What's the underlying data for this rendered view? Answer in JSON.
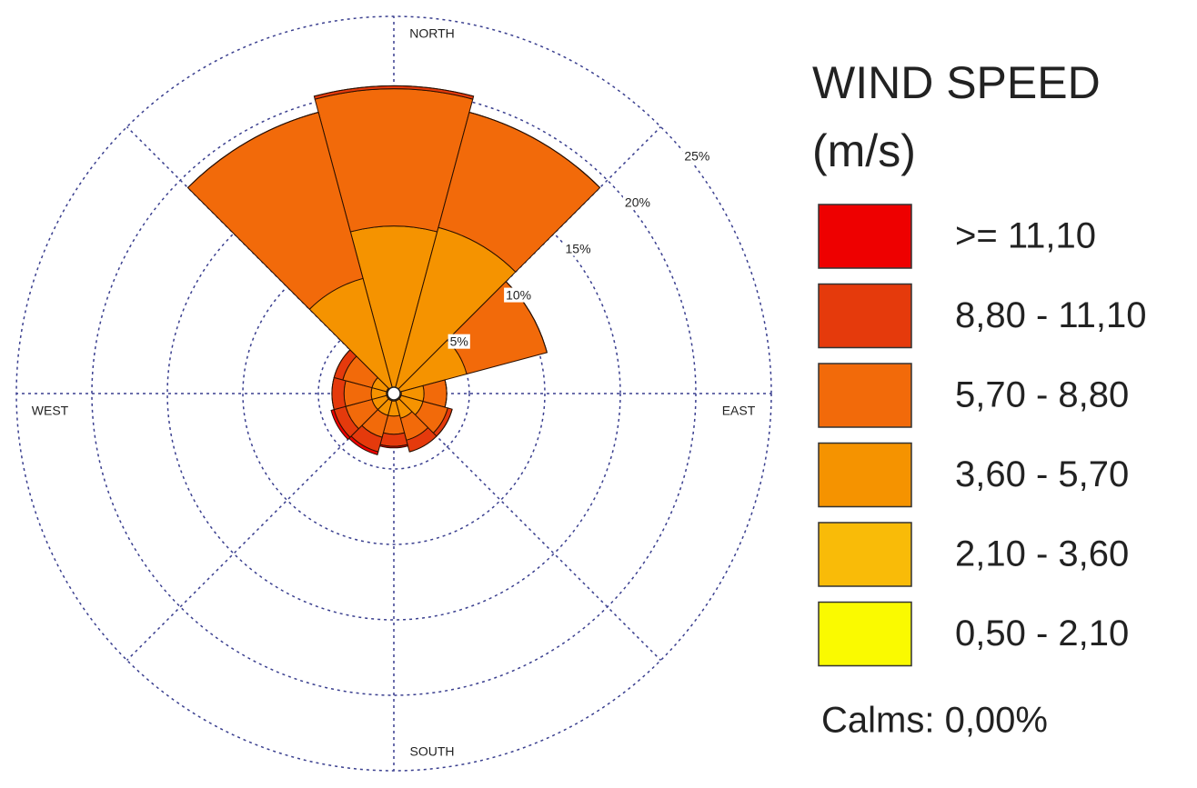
{
  "chart_data": {
    "type": "windrose",
    "legend_title": "WIND SPEED",
    "legend_unit": "(m/s)",
    "calms": "Calms: 0,00%",
    "direction_labels": {
      "north": "NORTH",
      "east": "EAST",
      "south": "SOUTH",
      "west": "WEST"
    },
    "categories": [
      null,
      null,
      null,
      null,
      null,
      null,
      null,
      null,
      null,
      null,
      null,
      null
    ],
    "rlim": [
      0,
      25
    ],
    "rticks": [
      {
        "value": 5,
        "label": "5%"
      },
      {
        "value": 10,
        "label": "10%"
      },
      {
        "value": 15,
        "label": "15%"
      },
      {
        "value": 20,
        "label": "20%"
      },
      {
        "value": 25,
        "label": "25%"
      }
    ],
    "grid": true,
    "series": [
      {
        "name": "0,50 - 2,10",
        "color": "#fafa00",
        "values": [
          0,
          0,
          0,
          0,
          0,
          0,
          0,
          0,
          0,
          0,
          0,
          0
        ]
      },
      {
        "name": "2,10 - 3,60",
        "color": "#f9bb08",
        "values": [
          0,
          0,
          0,
          0.5,
          0.5,
          0.5,
          0.5,
          0.5,
          0.5,
          0.5,
          0.5,
          0
        ]
      },
      {
        "name": "3,60 - 5,70",
        "color": "#f59300",
        "values": [
          11.1,
          11.4,
          5,
          1.5,
          1.5,
          1.2,
          1,
          1,
          1,
          1,
          1,
          7.9
        ]
      },
      {
        "name": "5,70 - 8,80",
        "color": "#f26a0a",
        "values": [
          9.1,
          7.9,
          5.5,
          1.5,
          1.7,
          1.5,
          1.2,
          1.5,
          1.8,
          1.8,
          2,
          11.4
        ]
      },
      {
        "name": "8,80 - 11,10",
        "color": "#e53a0c",
        "values": [
          0.2,
          0,
          0,
          0,
          0.3,
          0.8,
          0.8,
          1,
          0.8,
          0.8,
          0.6,
          0
        ]
      },
      {
        "name": ">= 11,10",
        "color": "#ee0000",
        "values": [
          0,
          0,
          0,
          0,
          0,
          0,
          0.1,
          0.2,
          0.2,
          0,
          0,
          0
        ]
      }
    ]
  }
}
